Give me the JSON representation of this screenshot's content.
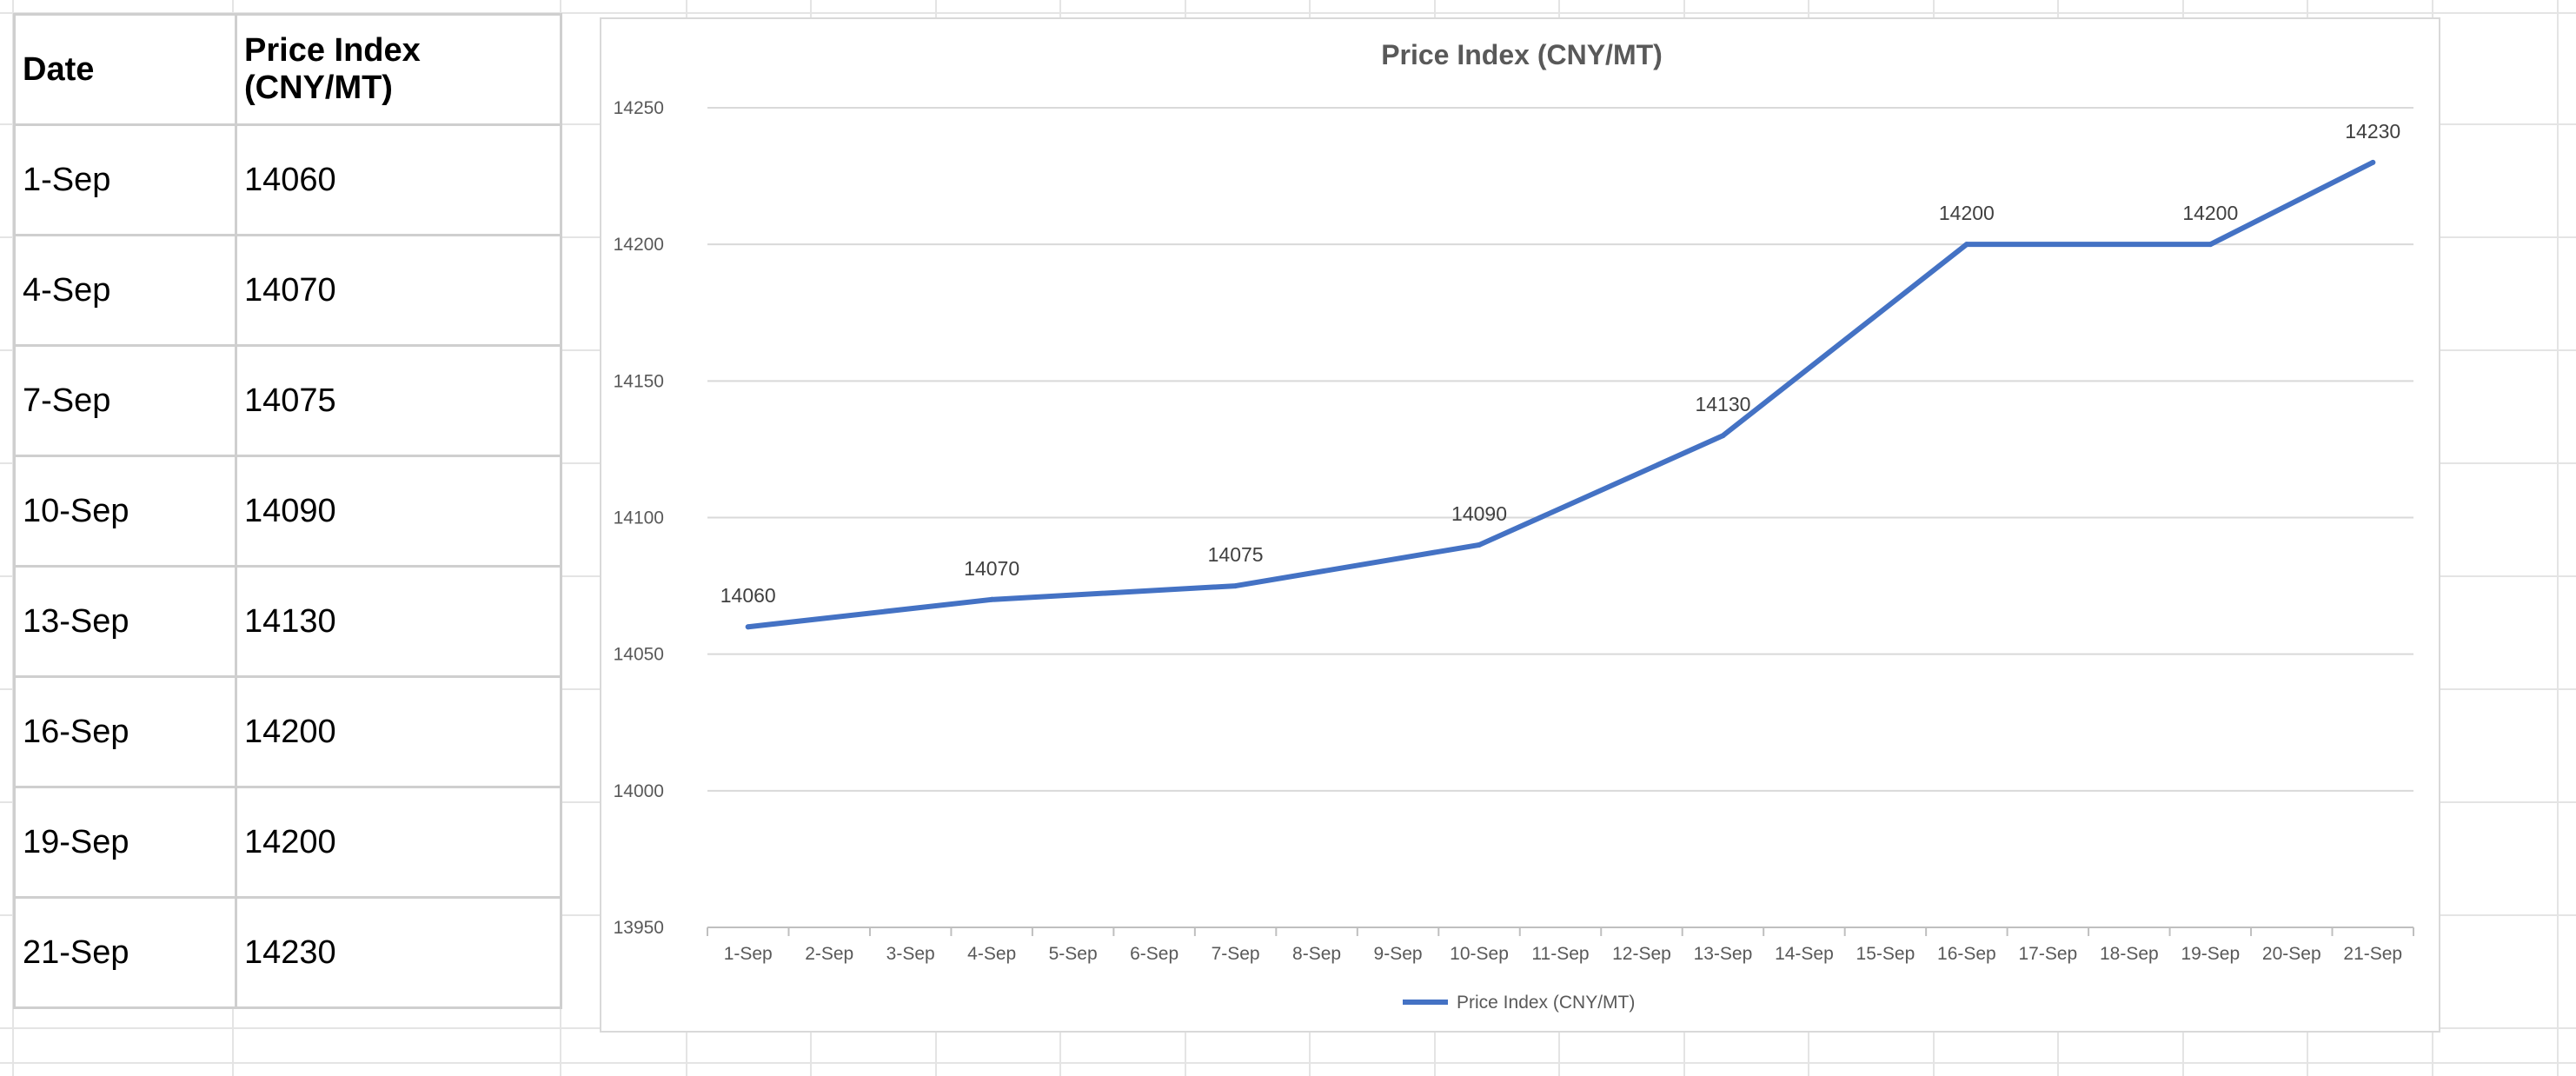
{
  "table": {
    "headers": [
      "Date",
      "Price Index (CNY/MT)"
    ],
    "rows": [
      [
        "1-Sep",
        "14060"
      ],
      [
        "4-Sep",
        "14070"
      ],
      [
        "7-Sep",
        "14075"
      ],
      [
        "10-Sep",
        "14090"
      ],
      [
        "13-Sep",
        "14130"
      ],
      [
        "16-Sep",
        "14200"
      ],
      [
        "19-Sep",
        "14200"
      ],
      [
        "21-Sep",
        "14230"
      ]
    ]
  },
  "chart_data": {
    "type": "line",
    "title": "Price Index (CNY/MT)",
    "xlabel": "",
    "ylabel": "",
    "categories": [
      "1-Sep",
      "2-Sep",
      "3-Sep",
      "4-Sep",
      "5-Sep",
      "6-Sep",
      "7-Sep",
      "8-Sep",
      "9-Sep",
      "10-Sep",
      "11-Sep",
      "12-Sep",
      "13-Sep",
      "14-Sep",
      "15-Sep",
      "16-Sep",
      "17-Sep",
      "18-Sep",
      "19-Sep",
      "20-Sep",
      "21-Sep"
    ],
    "series": [
      {
        "name": "Price Index (CNY/MT)",
        "color": "#4472C4",
        "points": [
          {
            "x": "1-Sep",
            "y": 14060
          },
          {
            "x": "4-Sep",
            "y": 14070
          },
          {
            "x": "7-Sep",
            "y": 14075
          },
          {
            "x": "10-Sep",
            "y": 14090
          },
          {
            "x": "13-Sep",
            "y": 14130
          },
          {
            "x": "16-Sep",
            "y": 14200
          },
          {
            "x": "19-Sep",
            "y": 14200
          },
          {
            "x": "21-Sep",
            "y": 14230
          }
        ]
      }
    ],
    "ylim": [
      13950,
      14250
    ],
    "yticks": [
      13950,
      14000,
      14050,
      14100,
      14150,
      14200,
      14250
    ],
    "grid": true,
    "data_labels": true,
    "legend": "bottom"
  }
}
